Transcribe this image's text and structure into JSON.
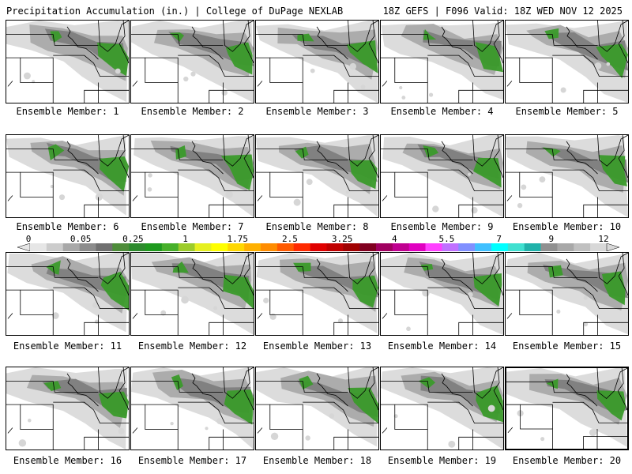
{
  "header": {
    "left": "Precipitation Accumulation (in.) | College of DuPage NEXLAB",
    "right": "18Z GEFS | F096 Valid: 18Z WED NOV 12 2025"
  },
  "label_prefix": "Ensemble Member: ",
  "members": [
    1,
    2,
    3,
    4,
    5,
    6,
    7,
    8,
    9,
    10,
    11,
    12,
    13,
    14,
    15,
    16,
    17,
    18,
    19,
    20
  ],
  "selected_member": 20,
  "colorbar": {
    "labels": [
      "0",
      "0.05",
      "0.25",
      "1",
      "1.75",
      "2.5",
      "3.25",
      "4",
      "5.5",
      "7",
      "9",
      "12"
    ],
    "colors": [
      "#e6e6e6",
      "#cccccc",
      "#a8a8a8",
      "#8c8c8c",
      "#707070",
      "#4e8c3a",
      "#2d8a2d",
      "#1e9a1e",
      "#47b02a",
      "#9ccc2a",
      "#e6f020",
      "#ffff00",
      "#ffd700",
      "#ffb000",
      "#ff8c00",
      "#ff5a00",
      "#ff2a00",
      "#e00000",
      "#c00000",
      "#a00000",
      "#800020",
      "#a00060",
      "#c00090",
      "#e000c0",
      "#ff40ff",
      "#c070ff",
      "#8090ff",
      "#40c0ff",
      "#00ffff",
      "#40e0d0",
      "#20b2aa",
      "#909090",
      "#a8a8a8",
      "#c0c0c0",
      "#d8d8d8"
    ]
  },
  "colors": {
    "state_line": "#000000",
    "precip_light": "#d6d6d6",
    "precip_mid": "#a9a9a9",
    "precip_dark": "#7e7e7e",
    "precip_green": "#3a9a2a",
    "precip_bright": "#6cc030"
  }
}
